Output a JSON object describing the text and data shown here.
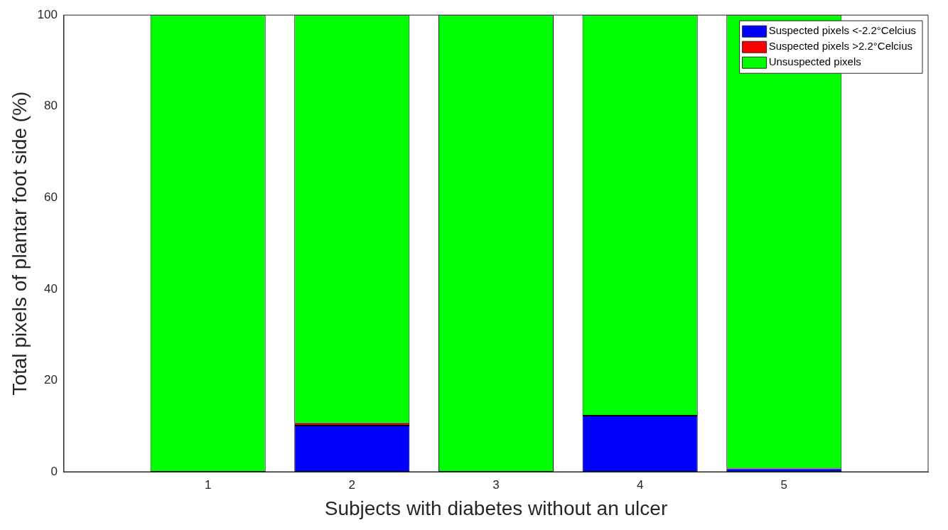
{
  "chart_data": {
    "type": "bar",
    "stacked": true,
    "xlabel": "Subjects with diabetes without an ulcer",
    "ylabel": "Total pixels of plantar foot side (%)",
    "x": [
      1,
      2,
      3,
      4,
      5
    ],
    "xlim": [
      0,
      6
    ],
    "xticks": [
      1,
      2,
      3,
      4,
      5
    ],
    "ylim": [
      0,
      100
    ],
    "yticks": [
      0,
      20,
      40,
      60,
      80,
      100
    ],
    "series": [
      {
        "name": "Suspected pixels <-2.2°Celcius",
        "color": "#0000ff",
        "values": [
          0,
          10.1,
          0,
          12.3,
          0.7
        ]
      },
      {
        "name": "Suspected pixels >2.2°Celcius",
        "color": "#ff0000",
        "values": [
          0,
          0.5,
          0,
          0,
          0
        ]
      },
      {
        "name": "Unsuspected pixels",
        "color": "#00ff00",
        "values": [
          100,
          89.4,
          100,
          87.7,
          99.3
        ]
      }
    ],
    "legend": "top right",
    "grid": false
  }
}
